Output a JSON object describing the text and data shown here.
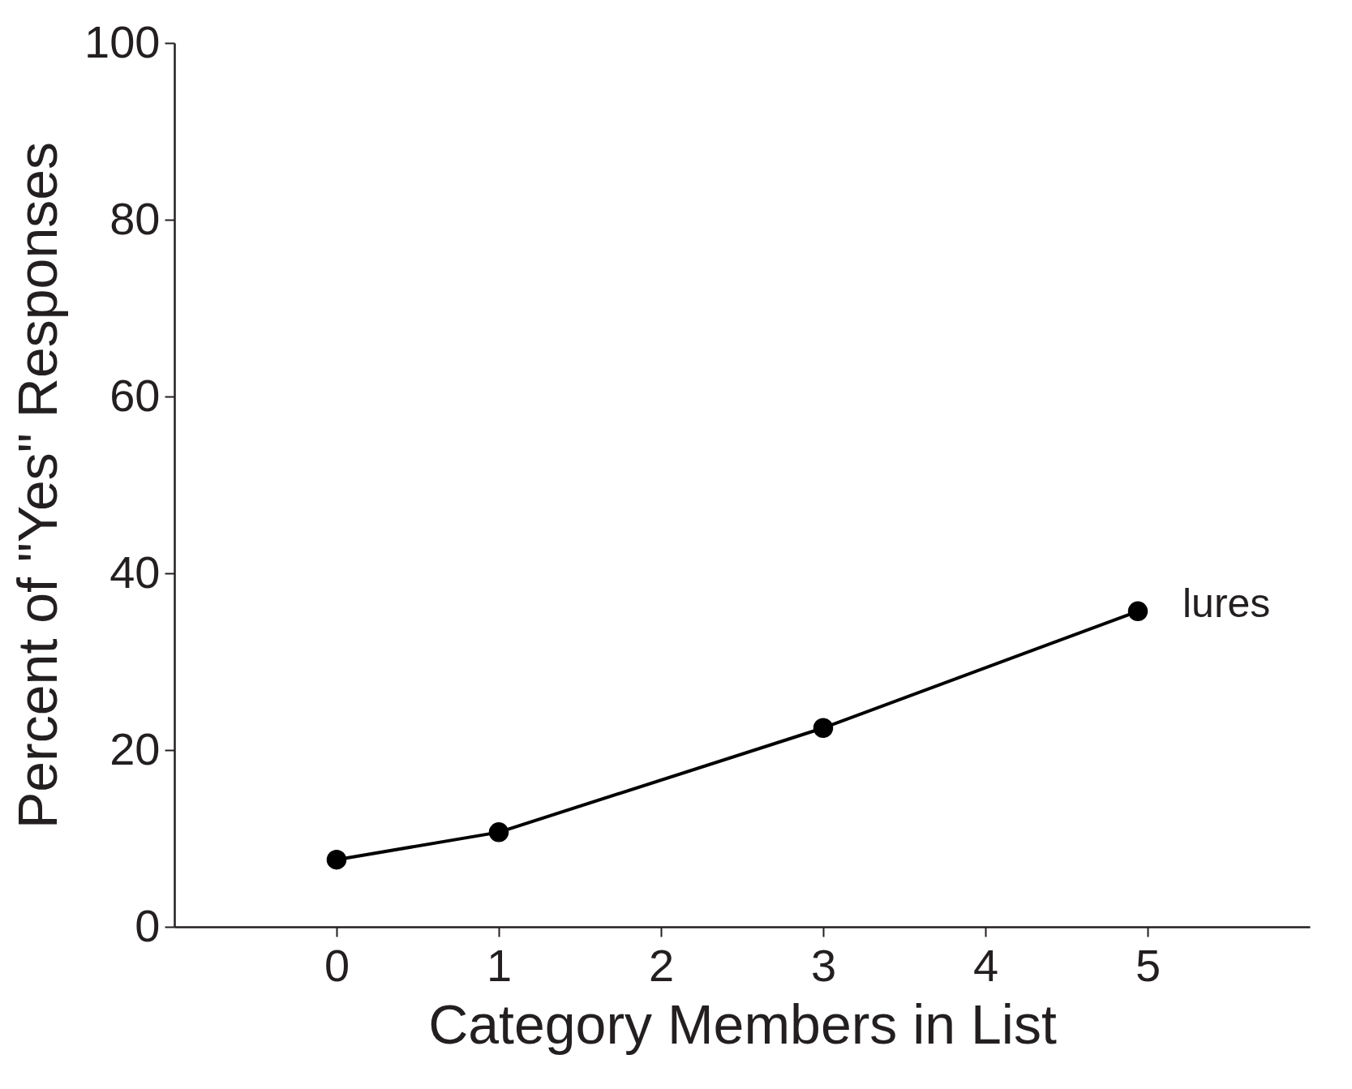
{
  "chart_data": {
    "type": "line",
    "xlabel": "Category Members in List",
    "ylabel": "Percent of \"Yes\" Responses",
    "series": [
      {
        "name": "lures",
        "color": "#000000",
        "x": [
          0,
          1,
          3,
          4.94
        ],
        "values": [
          7.6,
          10.7,
          22.5,
          35.7
        ]
      }
    ],
    "xlim": [
      -1,
      6
    ],
    "xticks": [
      0,
      1,
      2,
      3,
      4,
      5
    ],
    "ylim": [
      0,
      100
    ],
    "yticks": [
      0,
      20,
      40,
      60,
      80,
      100
    ],
    "grid": false,
    "legend": false,
    "marker": "circle",
    "line_style": "solid"
  }
}
